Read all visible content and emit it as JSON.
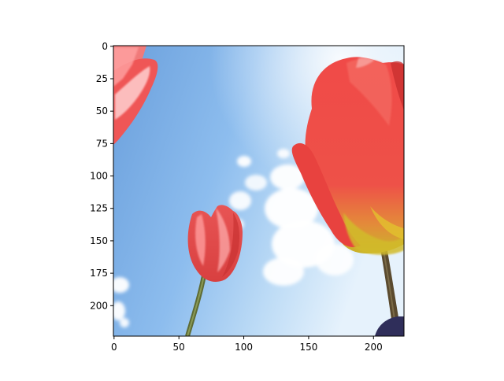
{
  "image": {
    "subject": "tulips-against-sky",
    "colors": {
      "sky_deep": "#6fa5df",
      "sky_light": "#e3f1fc",
      "cloud": "#ffffff",
      "petal": "#ef4f4f",
      "petal_dark": "#c93434",
      "petal_highlight": "#ff9b9b",
      "petal_base": "#cfb82a",
      "stem": "#5a6a34"
    }
  },
  "axes": {
    "x_ticks": [
      "0",
      "50",
      "100",
      "150",
      "200"
    ],
    "y_ticks": [
      "0",
      "25",
      "50",
      "75",
      "100",
      "125",
      "150",
      "175",
      "200"
    ],
    "x_range": [
      0,
      224
    ],
    "y_range": [
      0,
      224
    ],
    "frame_color": "#000000"
  }
}
